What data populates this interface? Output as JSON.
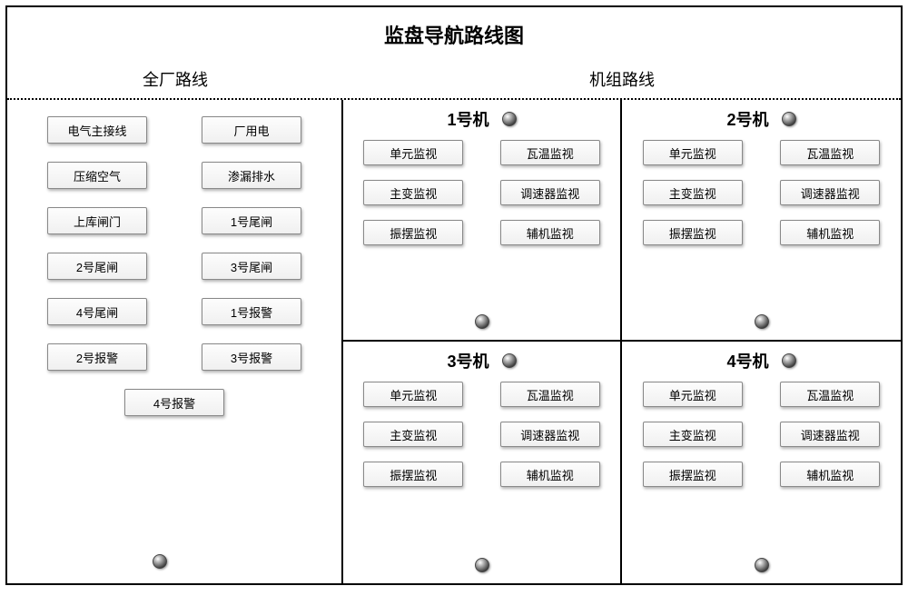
{
  "title": "监盘导航路线图",
  "sections": {
    "plant_header": "全厂路线",
    "unit_header": "机组路线"
  },
  "plant_buttons": [
    "电气主接线",
    "厂用电",
    "压缩空气",
    "渗漏排水",
    "上库闸门",
    "1号尾闸",
    "2号尾闸",
    "3号尾闸",
    "4号尾闸",
    "1号报警",
    "2号报警",
    "3号报警",
    "4号报警"
  ],
  "units": [
    {
      "name": "1号机",
      "buttons": [
        "单元监视",
        "瓦温监视",
        "主变监视",
        "调速器监视",
        "振摆监视",
        "辅机监视"
      ]
    },
    {
      "name": "2号机",
      "buttons": [
        "单元监视",
        "瓦温监视",
        "主变监视",
        "调速器监视",
        "振摆监视",
        "辅机监视"
      ]
    },
    {
      "name": "3号机",
      "buttons": [
        "单元监视",
        "瓦温监视",
        "主变监视",
        "调速器监视",
        "振摆监视",
        "辅机监视"
      ]
    },
    {
      "name": "4号机",
      "buttons": [
        "单元监视",
        "瓦温监视",
        "主变监视",
        "调速器监视",
        "振摆监视",
        "辅机监视"
      ]
    }
  ],
  "style": {
    "border_color": "#000000",
    "button_bg_top": "#fdfdfd",
    "button_bg_bottom": "#f0f0f0",
    "button_border": "#888888",
    "title_fontsize": 22,
    "header_fontsize": 18,
    "button_fontsize": 13,
    "dot_gradient": [
      "#ffffff",
      "#bbbbbb",
      "#333333",
      "#000000"
    ]
  }
}
